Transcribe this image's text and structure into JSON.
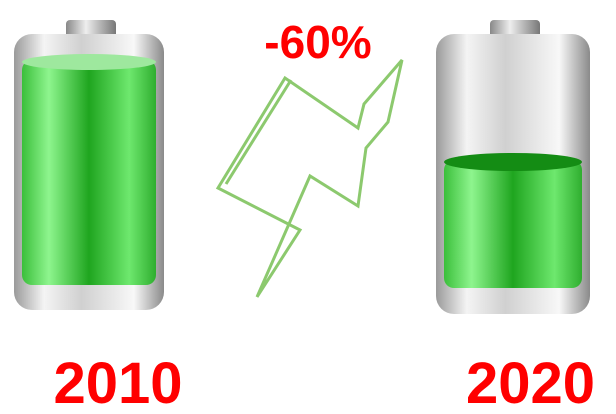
{
  "annotation": {
    "label": "-60%"
  },
  "batteries": [
    {
      "label": "2010"
    },
    {
      "label": "2020"
    }
  ]
}
